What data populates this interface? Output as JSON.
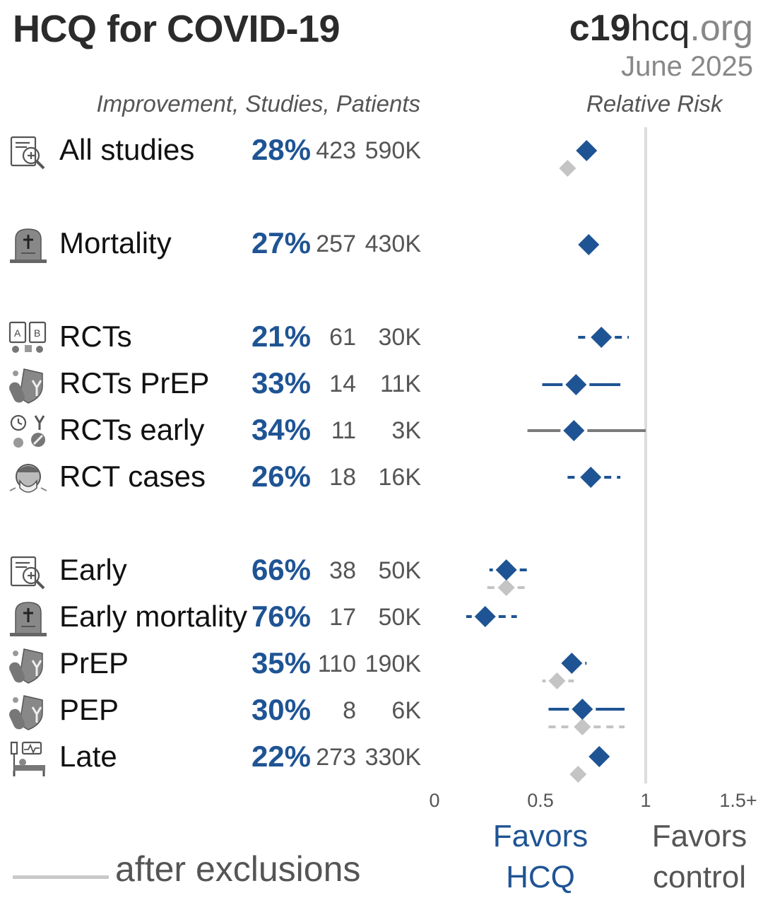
{
  "header": {
    "title": "HCQ for COVID-19",
    "site_bold": "c19",
    "site_mid": "hcq",
    "site_light": ".org",
    "date": "June 2025"
  },
  "columns": {
    "left": "Improvement, Studies, Patients",
    "right": "Relative Risk"
  },
  "favors": {
    "left_1": "Favors",
    "left_2": "HCQ",
    "right_1": "Favors",
    "right_2": "control"
  },
  "legend": {
    "label": "after exclusions"
  },
  "colors": {
    "primary": "#1f5494",
    "exclusions": "#c4c4c4",
    "reference_line": "#dcdcdc",
    "grey_ci": "#7a7a7a"
  },
  "rows": [
    {
      "name": "All studies",
      "icon": "document-search-icon",
      "improvement": "28%",
      "studies": "423",
      "patients": "590K"
    },
    {
      "name": "Mortality",
      "icon": "tombstone-icon",
      "improvement": "27%",
      "studies": "257",
      "patients": "430K"
    },
    {
      "name": "RCTs",
      "icon": "rct-clipboards-icon",
      "improvement": "21%",
      "studies": "61",
      "patients": "30K"
    },
    {
      "name": "RCTs PrEP",
      "icon": "shield-pill-icon",
      "improvement": "33%",
      "studies": "14",
      "patients": "11K"
    },
    {
      "name": "RCTs early",
      "icon": "clock-antibody-icon",
      "improvement": "34%",
      "studies": "11",
      "patients": "3K"
    },
    {
      "name": "RCT cases",
      "icon": "sick-person-icon",
      "improvement": "26%",
      "studies": "18",
      "patients": "16K"
    },
    {
      "name": "Early",
      "icon": "document-search-icon",
      "improvement": "66%",
      "studies": "38",
      "patients": "50K"
    },
    {
      "name": "Early mortality",
      "icon": "tombstone-icon",
      "improvement": "76%",
      "studies": "17",
      "patients": "50K"
    },
    {
      "name": "PrEP",
      "icon": "shield-pill-icon",
      "improvement": "35%",
      "studies": "110",
      "patients": "190K"
    },
    {
      "name": "PEP",
      "icon": "shield-pill-icon",
      "improvement": "30%",
      "studies": "8",
      "patients": "6K"
    },
    {
      "name": "Late",
      "icon": "hospital-bed-icon",
      "improvement": "22%",
      "studies": "273",
      "patients": "330K"
    }
  ],
  "chart_data": {
    "type": "forest",
    "title": "HCQ for COVID-19",
    "xlabel": "Relative Risk",
    "xlim": [
      0,
      1.5
    ],
    "xticks": [
      "0",
      "0.5",
      "1",
      "1.5+"
    ],
    "reference_value": 1,
    "series": [
      {
        "name": "All studies",
        "rr": 0.72,
        "ci": null,
        "excl_rr": 0.63,
        "excl_ci": null
      },
      {
        "name": "Mortality",
        "rr": 0.73,
        "ci": null,
        "excl_rr": null,
        "excl_ci": null
      },
      {
        "name": "RCTs",
        "rr": 0.79,
        "ci": [
          0.68,
          0.92
        ],
        "excl_rr": null,
        "excl_ci": null
      },
      {
        "name": "RCTs PrEP",
        "rr": 0.67,
        "ci": [
          0.51,
          0.88
        ],
        "excl_rr": null,
        "excl_ci": null
      },
      {
        "name": "RCTs early",
        "rr": 0.66,
        "ci": [
          0.44,
          1.0
        ],
        "excl_rr": null,
        "excl_ci": null,
        "ci_grey": true
      },
      {
        "name": "RCT cases",
        "rr": 0.74,
        "ci": [
          0.63,
          0.88
        ],
        "excl_rr": null,
        "excl_ci": null
      },
      {
        "name": "Early",
        "rr": 0.34,
        "ci": [
          0.26,
          0.46
        ],
        "excl_rr": 0.34,
        "excl_ci": [
          0.25,
          0.45
        ]
      },
      {
        "name": "Early mortality",
        "rr": 0.24,
        "ci": [
          0.15,
          0.39
        ],
        "excl_rr": null,
        "excl_ci": null
      },
      {
        "name": "PrEP",
        "rr": 0.65,
        "ci": [
          0.6,
          0.72
        ],
        "excl_rr": 0.58,
        "excl_ci": [
          0.51,
          0.66
        ]
      },
      {
        "name": "PEP",
        "rr": 0.7,
        "ci": [
          0.54,
          0.9
        ],
        "excl_rr": 0.7,
        "excl_ci": [
          0.54,
          0.9
        ]
      },
      {
        "name": "Late",
        "rr": 0.78,
        "ci": null,
        "excl_rr": 0.68,
        "excl_ci": null
      }
    ]
  }
}
